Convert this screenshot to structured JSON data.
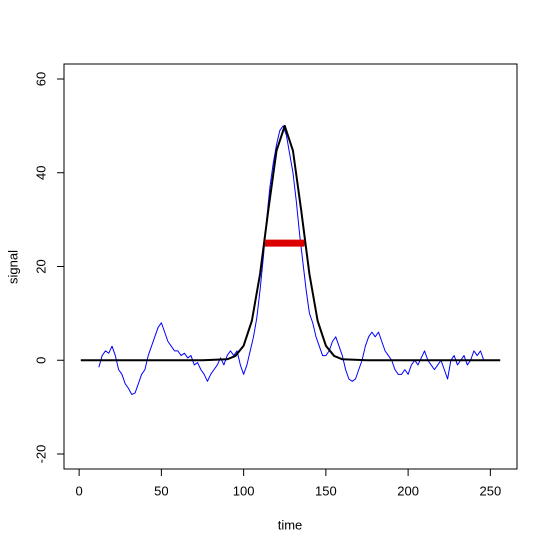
{
  "chart_data": {
    "type": "line",
    "xlabel": "time",
    "ylabel": "signal",
    "xlim": [
      -9.2,
      266.2
    ],
    "xticks": [
      0,
      50,
      100,
      150,
      200,
      250
    ],
    "ylim": [
      -23.2,
      63.2
    ],
    "yticks": [
      -20,
      0,
      20,
      40,
      60
    ],
    "grid": false,
    "series": [
      {
        "color": "#0000ff",
        "width": 1,
        "x": [
          12,
          14,
          16,
          18,
          20,
          22,
          24,
          26,
          28,
          30,
          32,
          34,
          36,
          38,
          40,
          42,
          44,
          46,
          48,
          50,
          52,
          54,
          56,
          58,
          60,
          62,
          64,
          66,
          68,
          70,
          72,
          74,
          76,
          78,
          80,
          82,
          84,
          86,
          88,
          90,
          92,
          94,
          96,
          98,
          100,
          102,
          104,
          106,
          108,
          110,
          112,
          114,
          116,
          118,
          120,
          122,
          124,
          126,
          128,
          130,
          132,
          134,
          136,
          138,
          140,
          142,
          144,
          146,
          148,
          150,
          152,
          154,
          156,
          158,
          160,
          162,
          164,
          166,
          168,
          170,
          172,
          174,
          176,
          178,
          180,
          182,
          184,
          186,
          188,
          190,
          192,
          194,
          196,
          198,
          200,
          202,
          204,
          206,
          208,
          210,
          212,
          214,
          216,
          218,
          220,
          222,
          224,
          226,
          228,
          230,
          232,
          234,
          236,
          238,
          240,
          242,
          244,
          246
        ],
        "values": [
          -1.5,
          1,
          2,
          1.5,
          3,
          1,
          -2,
          -3,
          -5,
          -6,
          -7.3,
          -7,
          -5,
          -3,
          -2,
          1,
          3,
          5,
          7,
          8,
          6,
          4,
          3,
          2,
          2,
          1,
          1.5,
          0.5,
          1,
          -1,
          -0.5,
          -2,
          -3,
          -4.5,
          -3,
          -2,
          -1,
          0.5,
          -1,
          1,
          2,
          1,
          2,
          -1,
          -3,
          -1,
          2,
          5,
          9,
          15,
          22,
          30,
          37,
          42,
          46,
          49,
          50,
          48,
          44,
          40,
          34,
          27,
          21,
          15,
          10,
          8,
          5,
          3,
          1,
          1,
          2,
          4,
          5,
          3,
          1,
          -2,
          -4,
          -4.5,
          -4,
          -2,
          0,
          3,
          5,
          6,
          5,
          6,
          4,
          2,
          1,
          0,
          -2,
          -3,
          -3,
          -2,
          -3,
          -1,
          0,
          -1,
          0.5,
          2,
          0,
          -1,
          -2,
          -1,
          0,
          -2,
          -4,
          0,
          1,
          -1,
          0,
          1,
          -1,
          0,
          2,
          1,
          2,
          0
        ]
      },
      {
        "color": "#000000",
        "width": 2,
        "x": [
          1,
          75,
          90,
          95,
          100,
          105,
          110,
          115,
          120,
          125,
          130,
          135,
          140,
          145,
          150,
          155,
          160,
          175,
          256
        ],
        "values": [
          0,
          0,
          0.21,
          0.92,
          3.1,
          8.4,
          18.4,
          32,
          44.7,
          50,
          44.7,
          32,
          18.4,
          8.4,
          3.1,
          0.92,
          0.21,
          0,
          0
        ]
      },
      {
        "color": "#dd0000",
        "width": 7,
        "x": [
          113,
          137
        ],
        "values": [
          25,
          25
        ]
      }
    ]
  }
}
